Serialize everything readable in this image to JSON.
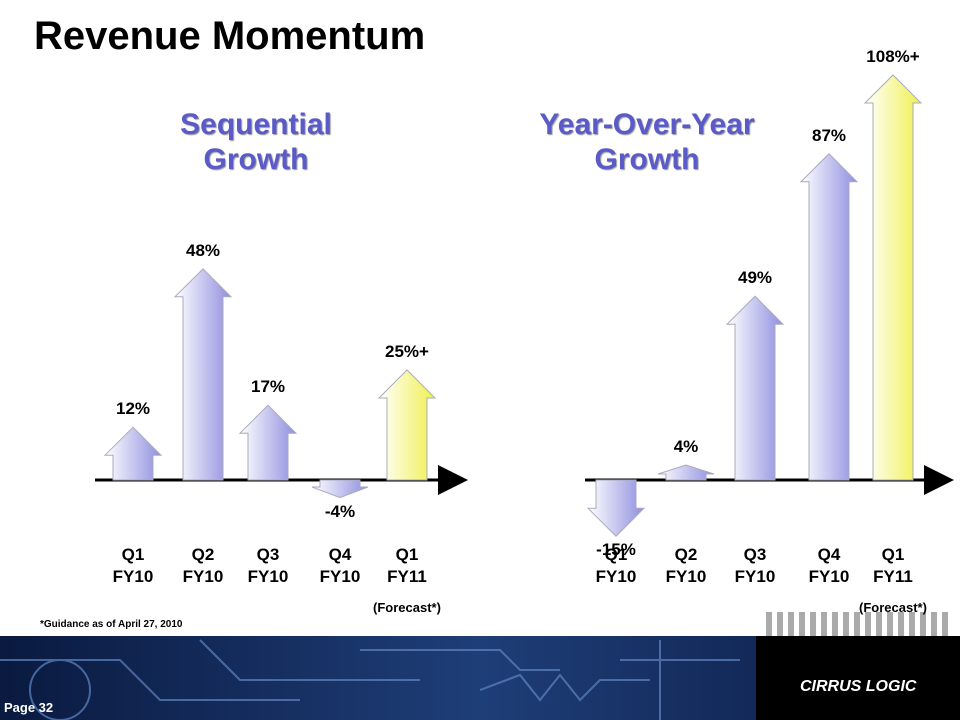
{
  "title": "Revenue Momentum",
  "chart_data": [
    {
      "type": "arrow",
      "title": "Sequential\nGrowth",
      "categories": [
        "Q1\nFY10",
        "Q2\nFY10",
        "Q3\nFY10",
        "Q4\nFY10",
        "Q1\nFY11"
      ],
      "values": [
        12,
        48,
        17,
        -4,
        25
      ],
      "value_labels": [
        "12%",
        "48%",
        "17%",
        "-4%",
        "25%+"
      ],
      "colors": [
        "#8f8fe0",
        "#8f8fe0",
        "#8f8fe0",
        "#8f8fe0",
        "#f0f050"
      ],
      "note": "(Forecast*)"
    },
    {
      "type": "arrow",
      "title": "Year-Over-Year\nGrowth",
      "categories": [
        "Q1\nFY10",
        "Q2\nFY10",
        "Q3\nFY10",
        "Q4\nFY10",
        "Q1\nFY11"
      ],
      "values": [
        -15,
        4,
        49,
        87,
        108
      ],
      "value_labels": [
        "-15%",
        "4%",
        "49%",
        "87%",
        "108%+"
      ],
      "colors": [
        "#8f8fe0",
        "#8f8fe0",
        "#8f8fe0",
        "#8f8fe0",
        "#f0f050"
      ],
      "note": "(Forecast*)"
    }
  ],
  "footnote": "*Guidance as of April 27, 2010",
  "footer": {
    "page": "Page 32",
    "logo": "CIRRUS LOGIC"
  }
}
